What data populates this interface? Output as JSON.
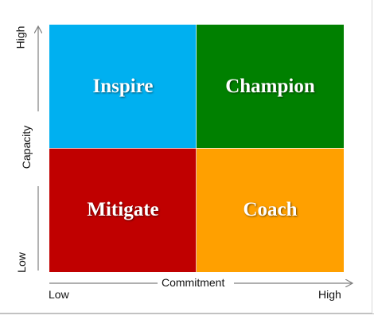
{
  "quadrants": {
    "top_left": {
      "label": "Inspire",
      "color": "#00b0f0"
    },
    "top_right": {
      "label": "Champion",
      "color": "#008000"
    },
    "bottom_left": {
      "label": "Mitigate",
      "color": "#c00000"
    },
    "bottom_right": {
      "label": "Coach",
      "color": "#ffa000"
    }
  },
  "x_axis": {
    "title": "Commitment",
    "low": "Low",
    "high": "High"
  },
  "y_axis": {
    "title": "Capacity",
    "low": "Low",
    "high": "High"
  },
  "axis_color": "#7f7f7f"
}
